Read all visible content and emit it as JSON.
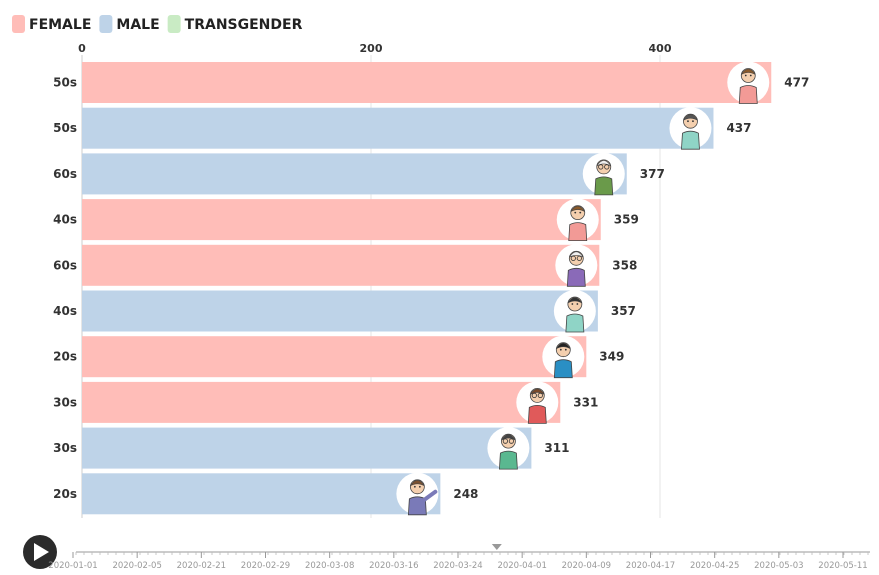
{
  "chart_data": {
    "type": "bar",
    "orientation": "horizontal",
    "legend": [
      {
        "name": "FEMALE",
        "color": "#ffbdb8"
      },
      {
        "name": "MALE",
        "color": "#bed3e8"
      },
      {
        "name": "TRANSGENDER",
        "color": "#c9ebc4"
      }
    ],
    "x_ticks": [
      0,
      200,
      400
    ],
    "xlim": [
      0,
      550
    ],
    "bars": [
      {
        "category": "50s",
        "gender": "FEMALE",
        "value": 477,
        "avatar": "older-woman-avatar"
      },
      {
        "category": "50s",
        "gender": "MALE",
        "value": 437,
        "avatar": "older-man-avatar"
      },
      {
        "category": "60s",
        "gender": "MALE",
        "value": 377,
        "avatar": "elderly-man-avatar"
      },
      {
        "category": "40s",
        "gender": "FEMALE",
        "value": 359,
        "avatar": "woman-avatar"
      },
      {
        "category": "60s",
        "gender": "FEMALE",
        "value": 358,
        "avatar": "elderly-woman-avatar"
      },
      {
        "category": "40s",
        "gender": "MALE",
        "value": 357,
        "avatar": "man-avatar"
      },
      {
        "category": "20s",
        "gender": "FEMALE",
        "value": 349,
        "avatar": "young-woman-avatar"
      },
      {
        "category": "30s",
        "gender": "FEMALE",
        "value": 331,
        "avatar": "woman-glasses-avatar"
      },
      {
        "category": "30s",
        "gender": "MALE",
        "value": 311,
        "avatar": "man-glasses-avatar"
      },
      {
        "category": "20s",
        "gender": "MALE",
        "value": 248,
        "avatar": "young-man-waving-avatar"
      }
    ],
    "timeline": {
      "dates": [
        "2020-01-01",
        "2020-02-05",
        "2020-02-21",
        "2020-02-29",
        "2020-03-08",
        "2020-03-16",
        "2020-03-24",
        "2020-04-01",
        "2020-04-09",
        "2020-04-17",
        "2020-04-25",
        "2020-05-03",
        "2020-05-11"
      ],
      "current_fraction": 0.53,
      "play_icon": "play-icon"
    }
  }
}
